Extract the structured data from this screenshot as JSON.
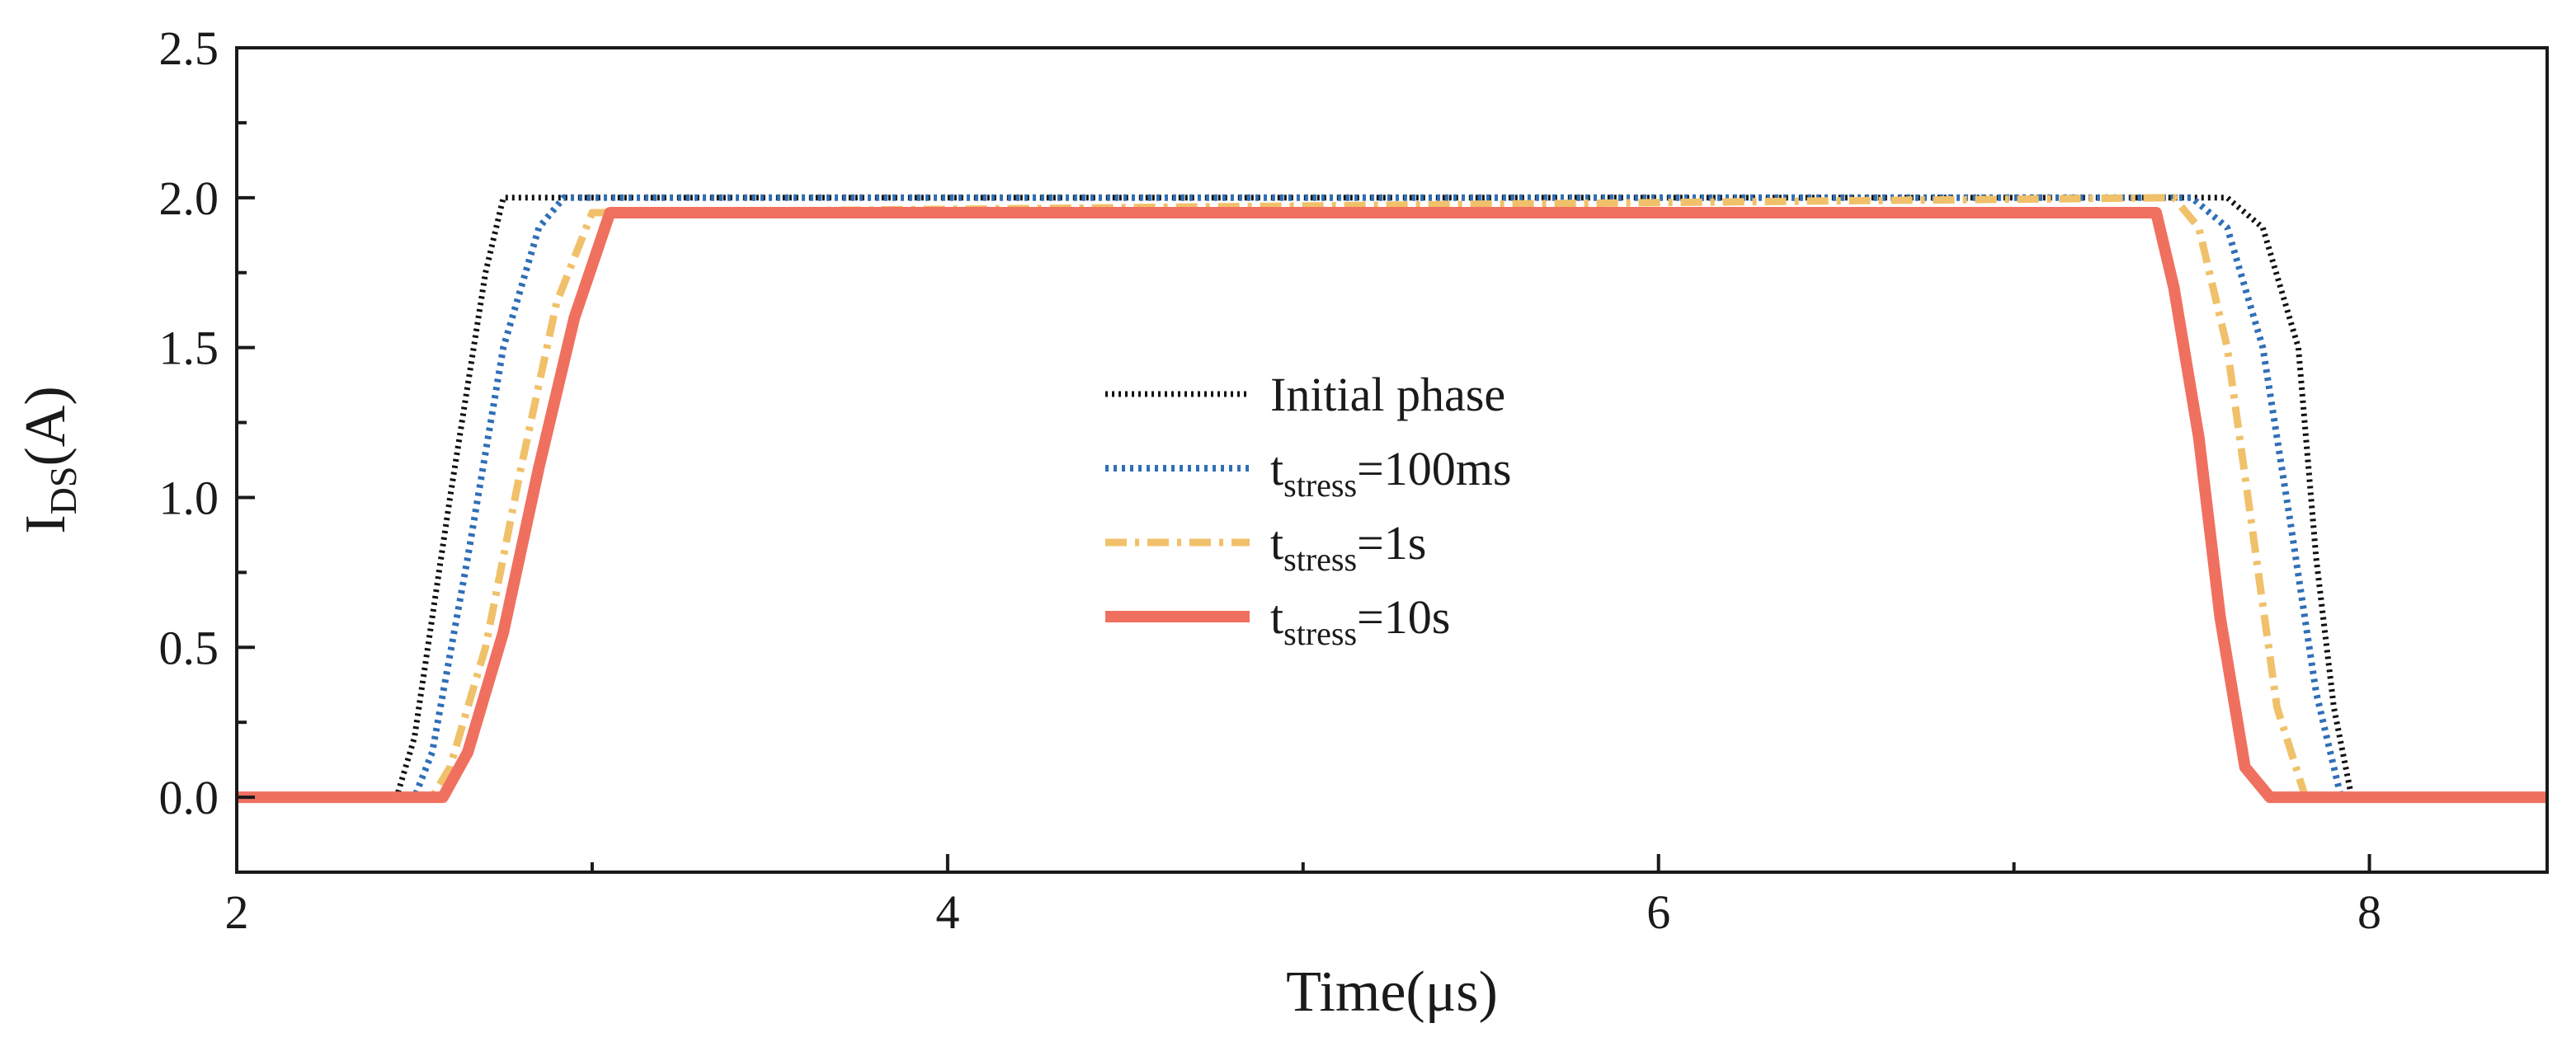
{
  "chart_data": {
    "type": "line",
    "title": "",
    "xlabel": "Time(μs)",
    "ylabel": {
      "main": "I",
      "sub": "DS",
      "unit": "(A)"
    },
    "xlim": [
      2,
      8.5
    ],
    "ylim": [
      -0.25,
      2.5
    ],
    "xticks": [
      2,
      4,
      6,
      8
    ],
    "xtick_labels": [
      "2",
      "4",
      "6",
      "8"
    ],
    "xminor": [
      3,
      5,
      7
    ],
    "yticks": [
      0.0,
      0.5,
      1.0,
      1.5,
      2.0,
      2.5
    ],
    "ytick_labels": [
      "0.0",
      "0.5",
      "1.0",
      "1.5",
      "2.0",
      "2.5"
    ],
    "grid": false,
    "legend_position": "center",
    "series": [
      {
        "name": "Initial phase",
        "legend_prefix": "",
        "legend_sub": "",
        "legend_suffix": "Initial phase",
        "color": "#111111",
        "style": "dotted",
        "x": [
          2.0,
          2.45,
          2.5,
          2.6,
          2.7,
          2.75,
          2.8,
          7.6,
          7.7,
          7.8,
          7.85,
          7.9,
          7.95,
          8.5
        ],
        "y": [
          0.0,
          0.0,
          0.2,
          1.0,
          1.75,
          2.0,
          2.0,
          2.0,
          1.9,
          1.5,
          0.8,
          0.3,
          0.0,
          0.0
        ]
      },
      {
        "name": "t_stress=100ms",
        "legend_prefix": "t",
        "legend_sub": "stress",
        "legend_suffix": "=100ms",
        "color": "#2f6fb7",
        "style": "dotted-blue",
        "x": [
          2.0,
          2.5,
          2.55,
          2.65,
          2.75,
          2.85,
          2.92,
          7.5,
          7.6,
          7.7,
          7.78,
          7.85,
          7.92,
          8.5
        ],
        "y": [
          0.0,
          0.0,
          0.15,
          0.8,
          1.5,
          1.9,
          2.0,
          2.0,
          1.9,
          1.5,
          0.9,
          0.35,
          0.0,
          0.0
        ]
      },
      {
        "name": "t_stress=1s",
        "legend_prefix": "t",
        "legend_sub": "stress",
        "legend_suffix": "=1s",
        "color": "#f0c16a",
        "style": "dashdot",
        "x": [
          2.0,
          2.55,
          2.6,
          2.7,
          2.8,
          2.9,
          3.0,
          7.45,
          7.52,
          7.6,
          7.67,
          7.74,
          7.82,
          8.5
        ],
        "y": [
          0.0,
          0.0,
          0.1,
          0.5,
          1.1,
          1.65,
          1.95,
          2.0,
          1.9,
          1.5,
          0.9,
          0.3,
          0.0,
          0.0
        ]
      },
      {
        "name": "t_stress=10s",
        "legend_prefix": "t",
        "legend_sub": "stress",
        "legend_suffix": "=10s",
        "color": "#f07060",
        "style": "solid",
        "x": [
          2.0,
          2.58,
          2.65,
          2.75,
          2.85,
          2.95,
          3.05,
          7.4,
          7.45,
          7.52,
          7.58,
          7.65,
          7.72,
          8.5
        ],
        "y": [
          0.0,
          0.0,
          0.15,
          0.55,
          1.1,
          1.6,
          1.95,
          1.95,
          1.7,
          1.2,
          0.6,
          0.1,
          0.0,
          0.0
        ]
      }
    ]
  },
  "colors": {
    "background": "#ffffff",
    "axis": "#1a1a1a"
  }
}
